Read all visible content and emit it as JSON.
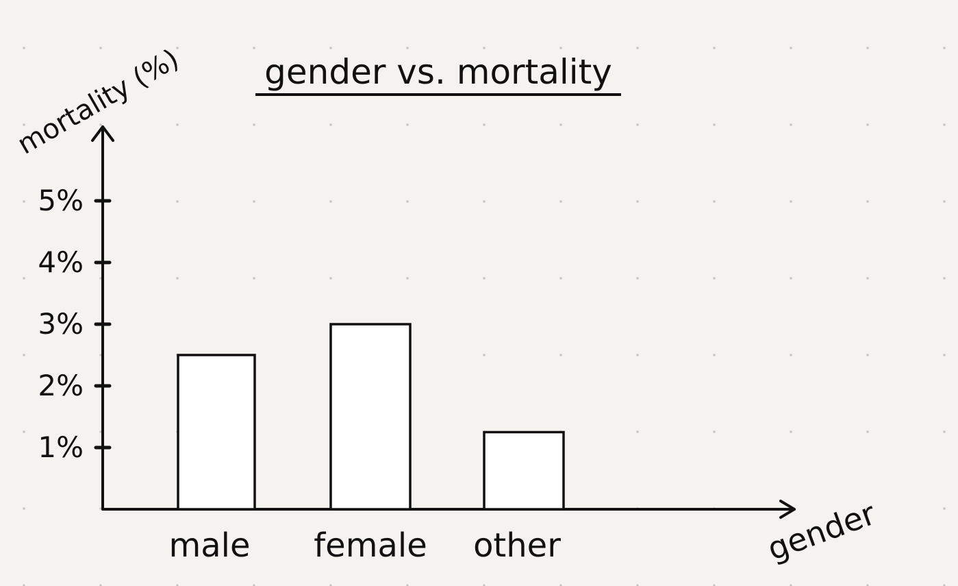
{
  "chart_data": {
    "type": "bar",
    "title": "gender vs. mortality",
    "xlabel": "gender",
    "ylabel": "mortality (%)",
    "categories": [
      "male",
      "female",
      "other"
    ],
    "values": [
      2.5,
      3.0,
      1.25
    ],
    "yticks": [
      1,
      2,
      3,
      4,
      5
    ],
    "ytick_labels": [
      "1%",
      "2%",
      "3%",
      "4%",
      "5%"
    ],
    "ylim": [
      0,
      6
    ],
    "grid": false,
    "legend": "none"
  },
  "colors": {
    "ink": "#111111",
    "paper": "#f4f3ef",
    "dot": "#c9c7c0",
    "bar_fill": "#ffffff"
  }
}
